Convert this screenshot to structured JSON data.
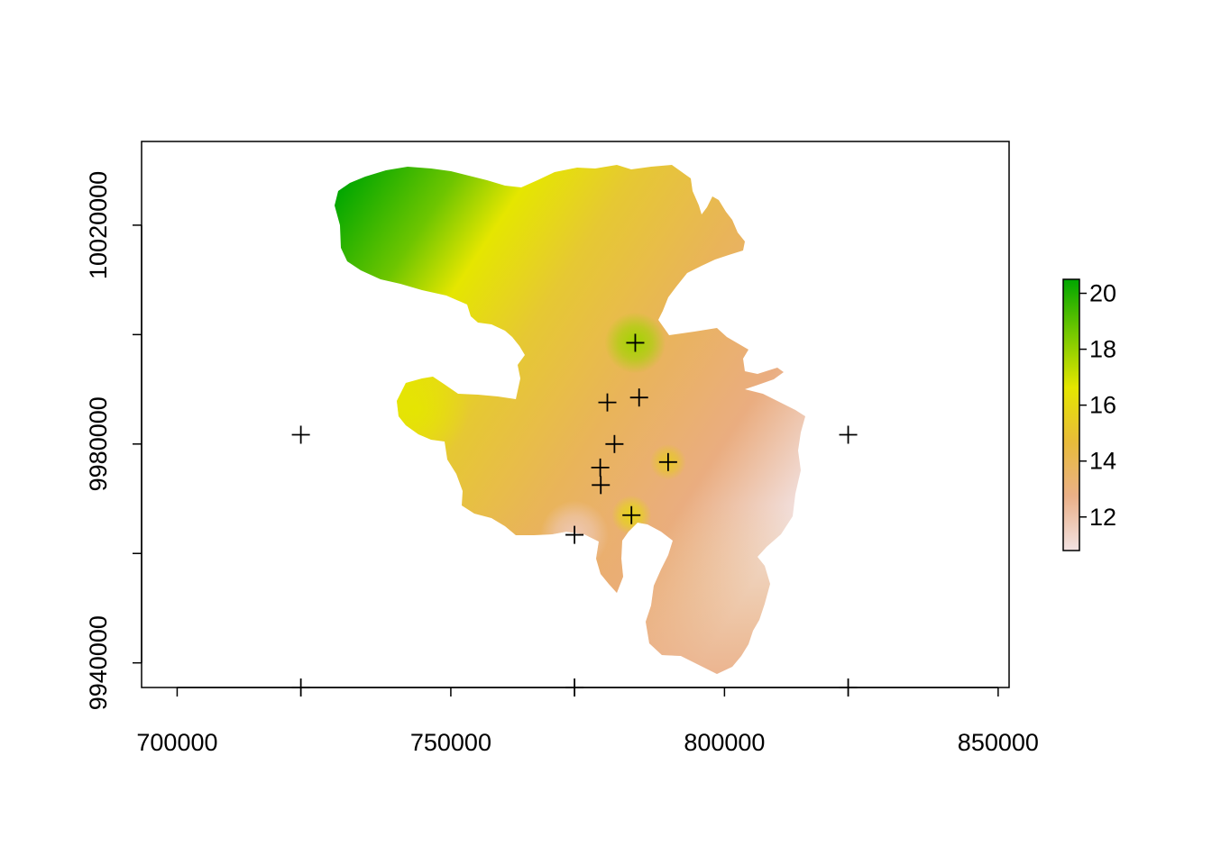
{
  "chart_data": {
    "type": "heatmap",
    "title": "",
    "xlabel": "",
    "ylabel": "",
    "xlim": [
      693500,
      852000
    ],
    "ylim": [
      9935500,
      10035300
    ],
    "x_ticks": [
      {
        "value": 700000,
        "label": "700000"
      },
      {
        "value": 750000,
        "label": "750000"
      },
      {
        "value": 800000,
        "label": "800000"
      },
      {
        "value": 850000,
        "label": "850000"
      }
    ],
    "y_ticks": [
      {
        "value": 9940000,
        "label": "9940000"
      },
      {
        "value": 9960000,
        "label": ""
      },
      {
        "value": 9980000,
        "label": "9980000"
      },
      {
        "value": 10000000,
        "label": ""
      },
      {
        "value": 10020000,
        "label": "10020000"
      }
    ],
    "grid": false,
    "raster_colors": [
      "#f2e2e2",
      "#e8a87c",
      "#e6c833",
      "#e5e600",
      "#6ec500",
      "#00a600"
    ],
    "colorbar": {
      "min": 10.8,
      "max": 20.5,
      "colors": [
        "#f2e2e2",
        "#eab088",
        "#e8bb3a",
        "#e5e600",
        "#75c800",
        "#00a600"
      ],
      "ticks": [
        {
          "value": 12,
          "label": "12"
        },
        {
          "value": 14,
          "label": "14"
        },
        {
          "value": 16,
          "label": "16"
        },
        {
          "value": 18,
          "label": "18"
        },
        {
          "value": 20,
          "label": "20"
        }
      ],
      "legend_position": "right"
    },
    "points": [
      {
        "x": 722600,
        "y": 9981700
      },
      {
        "x": 822600,
        "y": 9981700
      },
      {
        "x": 783700,
        "y": 9998500
      },
      {
        "x": 778600,
        "y": 9987600
      },
      {
        "x": 784400,
        "y": 9988500
      },
      {
        "x": 779900,
        "y": 9980000
      },
      {
        "x": 777300,
        "y": 9975700
      },
      {
        "x": 789700,
        "y": 9976700
      },
      {
        "x": 777400,
        "y": 9972500
      },
      {
        "x": 783000,
        "y": 9967000
      },
      {
        "x": 772600,
        "y": 9963400
      },
      {
        "x": 722600,
        "y": 9935500
      },
      {
        "x": 772600,
        "y": 9935500
      },
      {
        "x": 822600,
        "y": 9935500
      }
    ],
    "point_marker": "plus",
    "hotspots": [
      {
        "x": 783700,
        "y": 9998500,
        "value": 17.8
      },
      {
        "x": 772600,
        "y": 9963400,
        "value": 11.8
      },
      {
        "x": 783000,
        "y": 9967000,
        "value": 15.8
      },
      {
        "x": 789700,
        "y": 9976700,
        "value": 15.2
      }
    ]
  }
}
